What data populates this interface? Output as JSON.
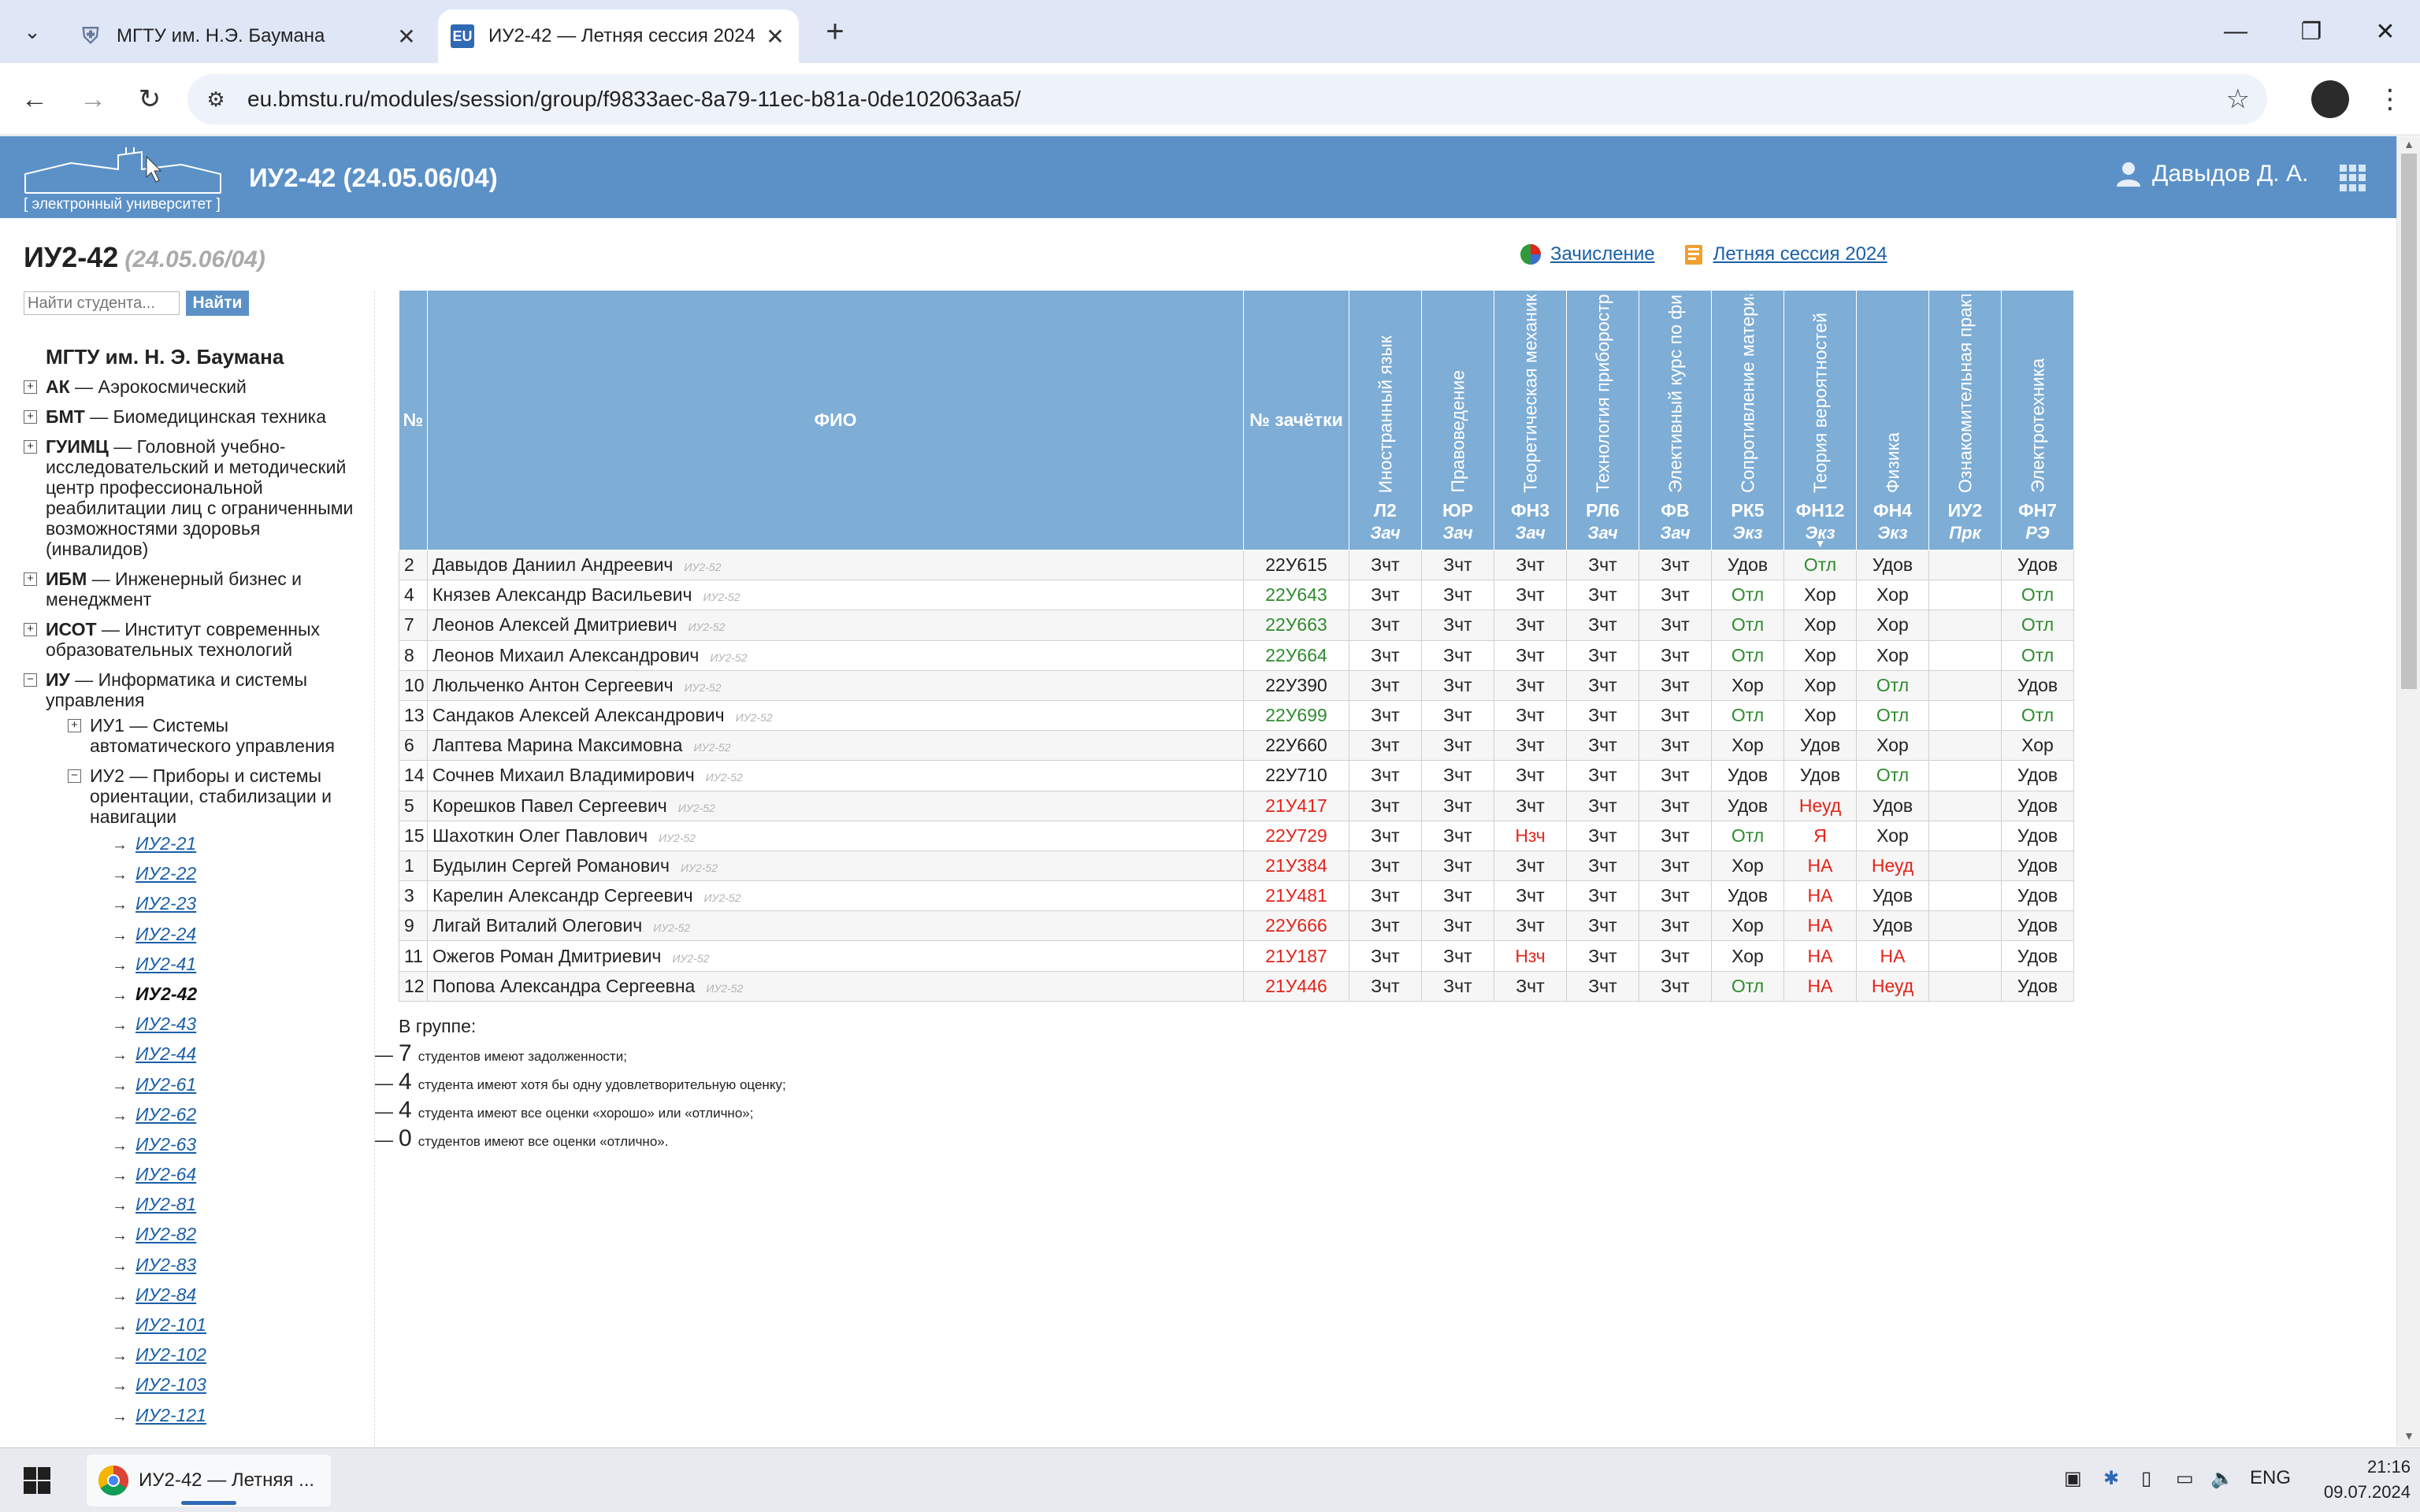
{
  "browser": {
    "tabs": [
      {
        "label": "МГТУ им. Н.Э. Баумана",
        "favicon": "crest-icon"
      },
      {
        "label": "ИУ2-42 — Летняя сессия 2024",
        "favicon": "EU"
      }
    ],
    "url": "eu.bmstu.ru/modules/session/group/f9833aec-8a79-11ec-b81a-0de102063aa5/"
  },
  "header": {
    "logo_caption": "[ электронный университет ]",
    "title": "ИУ2-42 (24.05.06/04)",
    "user": "Давыдов Д. А."
  },
  "page": {
    "title": "ИУ2-42",
    "subtitle": "(24.05.06/04)",
    "search_placeholder": "Найти студента...",
    "search_button": "Найти",
    "links": {
      "enrollment": "Зачисление",
      "session": "Летняя сессия 2024"
    }
  },
  "sidebar": {
    "root": "МГТУ им. Н. Э. Баумана",
    "nodes": [
      {
        "code": "АК",
        "name": "Аэрокосмический"
      },
      {
        "code": "БМТ",
        "name": "Биомедицинская техника"
      },
      {
        "code": "ГУИМЦ",
        "name": "Головной учебно-исследовательский и методический центр профессиональной реабилитации лиц с ограниченными возможностями здоровья (инвалидов)"
      },
      {
        "code": "ИБМ",
        "name": "Инженерный бизнес и менеджмент"
      },
      {
        "code": "ИСОТ",
        "name": "Институт современных образовательных технологий"
      },
      {
        "code": "ИУ",
        "name": "Информатика и системы управления"
      }
    ],
    "subnodes": [
      {
        "code": "ИУ1",
        "name": "Системы автоматического управления"
      },
      {
        "code": "ИУ2",
        "name": "Приборы и системы ориентации, стабилизации и навигации"
      }
    ],
    "groups": [
      "ИУ2-21",
      "ИУ2-22",
      "ИУ2-23",
      "ИУ2-24",
      "ИУ2-41",
      "ИУ2-42",
      "ИУ2-43",
      "ИУ2-44",
      "ИУ2-61",
      "ИУ2-62",
      "ИУ2-63",
      "ИУ2-64",
      "ИУ2-81",
      "ИУ2-82",
      "ИУ2-83",
      "ИУ2-84",
      "ИУ2-101",
      "ИУ2-102",
      "ИУ2-103",
      "ИУ2-121"
    ],
    "current_group": "ИУ2-42"
  },
  "table": {
    "headers": {
      "num": "№",
      "fio": "ФИО",
      "book": "№ зачётки"
    },
    "subjects": [
      {
        "name": "Иностранный язык",
        "code": "Л2",
        "type": "Зач"
      },
      {
        "name": "Правоведение",
        "code": "ЮР",
        "type": "Зач"
      },
      {
        "name": "Теоретическая механика",
        "code": "ФН3",
        "type": "Зач"
      },
      {
        "name": "Технология приборостроения",
        "code": "РЛ6",
        "type": "Зач"
      },
      {
        "name": "Элективный курс по физической культуре",
        "code": "ФВ",
        "type": "Зач"
      },
      {
        "name": "Сопротивление материалов",
        "code": "РК5",
        "type": "Экз"
      },
      {
        "name": "Теория вероятностей",
        "code": "ФН12",
        "type": "Экз"
      },
      {
        "name": "Физика",
        "code": "ФН4",
        "type": "Экз"
      },
      {
        "name": "Ознакомительная практика",
        "code": "ИУ2",
        "type": "Прк"
      },
      {
        "name": "Электротехника",
        "code": "ФН7",
        "type": "РЭ"
      }
    ],
    "rows": [
      {
        "num": "2",
        "fio": "Давыдов Даниил Андреевич",
        "grp": "ИУ2-52",
        "book": "22У615",
        "book_status": "ok",
        "grades": [
          "Зчт",
          "Зчт",
          "Зчт",
          "Зчт",
          "Зчт",
          "Удов",
          "Отл",
          "Удов",
          "",
          "Удов"
        ]
      },
      {
        "num": "4",
        "fio": "Князев Александр Васильевич",
        "grp": "ИУ2-52",
        "book": "22У643",
        "book_status": "good",
        "grades": [
          "Зчт",
          "Зчт",
          "Зчт",
          "Зчт",
          "Зчт",
          "Отл",
          "Хор",
          "Хор",
          "",
          "Отл"
        ]
      },
      {
        "num": "7",
        "fio": "Леонов Алексей Дмитриевич",
        "grp": "ИУ2-52",
        "book": "22У663",
        "book_status": "good",
        "grades": [
          "Зчт",
          "Зчт",
          "Зчт",
          "Зчт",
          "Зчт",
          "Отл",
          "Хор",
          "Хор",
          "",
          "Отл"
        ]
      },
      {
        "num": "8",
        "fio": "Леонов Михаил Александрович",
        "grp": "ИУ2-52",
        "book": "22У664",
        "book_status": "good",
        "grades": [
          "Зчт",
          "Зчт",
          "Зчт",
          "Зчт",
          "Зчт",
          "Отл",
          "Хор",
          "Хор",
          "",
          "Отл"
        ]
      },
      {
        "num": "10",
        "fio": "Люльченко Антон Сергеевич",
        "grp": "ИУ2-52",
        "book": "22У390",
        "book_status": "ok",
        "grades": [
          "Зчт",
          "Зчт",
          "Зчт",
          "Зчт",
          "Зчт",
          "Хор",
          "Хор",
          "Отл",
          "",
          "Удов"
        ]
      },
      {
        "num": "13",
        "fio": "Сандаков Алексей Александрович",
        "grp": "ИУ2-52",
        "book": "22У699",
        "book_status": "good",
        "grades": [
          "Зчт",
          "Зчт",
          "Зчт",
          "Зчт",
          "Зчт",
          "Отл",
          "Хор",
          "Отл",
          "",
          "Отл"
        ]
      },
      {
        "num": "6",
        "fio": "Лаптева Марина Максимовна",
        "grp": "ИУ2-52",
        "book": "22У660",
        "book_status": "ok",
        "grades": [
          "Зчт",
          "Зчт",
          "Зчт",
          "Зчт",
          "Зчт",
          "Хор",
          "Удов",
          "Хор",
          "",
          "Хор"
        ]
      },
      {
        "num": "14",
        "fio": "Сочнев Михаил Владимирович",
        "grp": "ИУ2-52",
        "book": "22У710",
        "book_status": "ok",
        "grades": [
          "Зчт",
          "Зчт",
          "Зчт",
          "Зчт",
          "Зчт",
          "Удов",
          "Удов",
          "Отл",
          "",
          "Удов"
        ]
      },
      {
        "num": "5",
        "fio": "Корешков Павел Сергеевич",
        "grp": "ИУ2-52",
        "book": "21У417",
        "book_status": "bad",
        "grades": [
          "Зчт",
          "Зчт",
          "Зчт",
          "Зчт",
          "Зчт",
          "Удов",
          "Неуд",
          "Удов",
          "",
          "Удов"
        ]
      },
      {
        "num": "15",
        "fio": "Шахоткин Олег Павлович",
        "grp": "ИУ2-52",
        "book": "22У729",
        "book_status": "bad",
        "grades": [
          "Зчт",
          "Зчт",
          "Нзч",
          "Зчт",
          "Зчт",
          "Отл",
          "Я",
          "Хор",
          "",
          "Удов"
        ]
      },
      {
        "num": "1",
        "fio": "Будылин Сергей Романович",
        "grp": "ИУ2-52",
        "book": "21У384",
        "book_status": "bad",
        "grades": [
          "Зчт",
          "Зчт",
          "Зчт",
          "Зчт",
          "Зчт",
          "Хор",
          "НА",
          "Неуд",
          "",
          "Удов"
        ]
      },
      {
        "num": "3",
        "fio": "Карелин Александр Сергеевич",
        "grp": "ИУ2-52",
        "book": "21У481",
        "book_status": "bad",
        "grades": [
          "Зчт",
          "Зчт",
          "Зчт",
          "Зчт",
          "Зчт",
          "Удов",
          "НА",
          "Удов",
          "",
          "Удов"
        ]
      },
      {
        "num": "9",
        "fio": "Лигай Виталий Олегович",
        "grp": "ИУ2-52",
        "book": "22У666",
        "book_status": "bad",
        "grades": [
          "Зчт",
          "Зчт",
          "Зчт",
          "Зчт",
          "Зчт",
          "Хор",
          "НА",
          "Удов",
          "",
          "Удов"
        ]
      },
      {
        "num": "11",
        "fio": "Ожегов Роман Дмитриевич",
        "grp": "ИУ2-52",
        "book": "21У187",
        "book_status": "bad",
        "grades": [
          "Зчт",
          "Зчт",
          "Нзч",
          "Зчт",
          "Зчт",
          "Хор",
          "НА",
          "НА",
          "",
          "Удов"
        ]
      },
      {
        "num": "12",
        "fio": "Попова Александра Сергеевна",
        "grp": "ИУ2-52",
        "book": "21У446",
        "book_status": "bad",
        "grades": [
          "Зчт",
          "Зчт",
          "Зчт",
          "Зчт",
          "Зчт",
          "Отл",
          "НА",
          "Неуд",
          "",
          "Удов"
        ]
      }
    ]
  },
  "summary": {
    "heading": "В группе:",
    "lines": [
      {
        "count": "7",
        "text": "студентов имеют задолженности;"
      },
      {
        "count": "4",
        "text": "студента имеют хотя бы одну удовлетворительную оценку;"
      },
      {
        "count": "4",
        "text": "студента имеют все оценки «хорошо» или «отлично»;"
      },
      {
        "count": "0",
        "text": "студентов имеют все оценки «отлично»."
      }
    ]
  },
  "taskbar": {
    "app_label": "ИУ2-42 — Летняя ...",
    "lang": "ENG",
    "time": "21:16",
    "date": "09.07.2024"
  },
  "colors": {
    "header": "#5b91c7",
    "table_header": "#7eadd6",
    "good": "#2e8b2e",
    "bad": "#e3241b",
    "link": "#1a5fa8"
  }
}
